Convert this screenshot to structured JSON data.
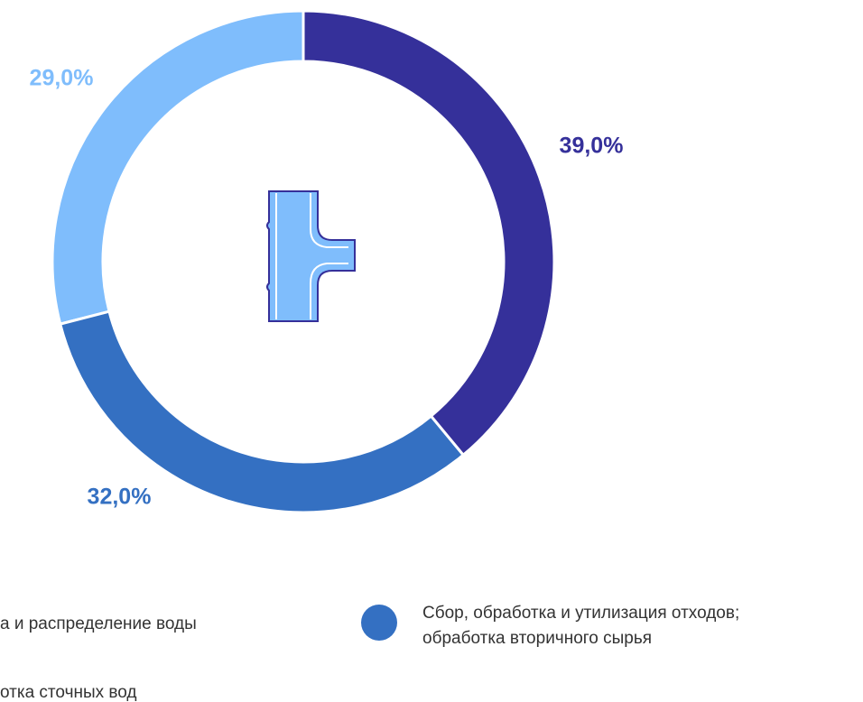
{
  "chart_data": {
    "type": "donut",
    "categories": [
      "а и распределение воды",
      "Сбор, обработка и утилизация отходов; обработка вторичного сырья",
      "отка сточных вод"
    ],
    "values": [
      39,
      32,
      29
    ],
    "value_labels": [
      "39,0%",
      "32,0%",
      "29,0%"
    ],
    "colors": [
      "#35309a",
      "#3470c2",
      "#7fbdfc"
    ]
  }
}
